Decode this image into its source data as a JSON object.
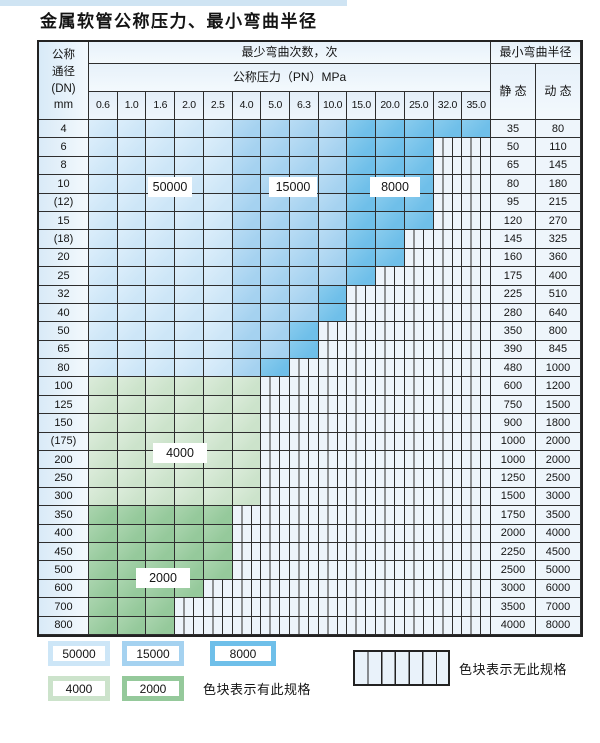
{
  "page": {
    "title": "金属软管公称压力、最小弯曲半径"
  },
  "table": {
    "corner_lines": [
      "公称",
      "通径",
      "(DN)",
      "mm"
    ],
    "cycles_header": "最少弯曲次数，次",
    "pressure_header": "公称压力（PN）MPa",
    "radius_header": "最小弯曲半径",
    "static_label": "静 态",
    "dynamic_label": "动 态",
    "pressure_columns": [
      "0.6",
      "1.0",
      "1.6",
      "2.0",
      "2.5",
      "4.0",
      "5.0",
      "6.3",
      "10.0",
      "15.0",
      "20.0",
      "25.0",
      "32.0",
      "35.0"
    ],
    "cell_legend_codes": {
      "L": "50000",
      "M": "15000",
      "D": "8000",
      "G": "4000",
      "g": "2000",
      "X": "无此规格"
    },
    "rows": [
      {
        "dn": "4",
        "cells": "LLLLLMMMMDDDDD",
        "static": "35",
        "dynamic": "80"
      },
      {
        "dn": "6",
        "cells": "LLLLLMMMMDDDXX",
        "static": "50",
        "dynamic": "110"
      },
      {
        "dn": "8",
        "cells": "LLLLLMMMMDDDXX",
        "static": "65",
        "dynamic": "145"
      },
      {
        "dn": "10",
        "cells": "LLLLLMMMMDDDXX",
        "static": "80",
        "dynamic": "180"
      },
      {
        "dn": "(12)",
        "cells": "LLLLLMMMMDDDXX",
        "static": "95",
        "dynamic": "215"
      },
      {
        "dn": "15",
        "cells": "LLLLLMMMMDDDXX",
        "static": "120",
        "dynamic": "270"
      },
      {
        "dn": "(18)",
        "cells": "LLLLLMMMMDDXXX",
        "static": "145",
        "dynamic": "325"
      },
      {
        "dn": "20",
        "cells": "LLLLLMMMMDDXXX",
        "static": "160",
        "dynamic": "360"
      },
      {
        "dn": "25",
        "cells": "LLLLLMMMMDXXXX",
        "static": "175",
        "dynamic": "400"
      },
      {
        "dn": "32",
        "cells": "LLLLLMMMDXXXXX",
        "static": "225",
        "dynamic": "510"
      },
      {
        "dn": "40",
        "cells": "LLLLLMMMDXXXXX",
        "static": "280",
        "dynamic": "640"
      },
      {
        "dn": "50",
        "cells": "LLLLLMMDXXXXXX",
        "static": "350",
        "dynamic": "800"
      },
      {
        "dn": "65",
        "cells": "LLLLLMMDXXXXXX",
        "static": "390",
        "dynamic": "845"
      },
      {
        "dn": "80",
        "cells": "LLLLLMDXXXXXXX",
        "static": "480",
        "dynamic": "1000"
      },
      {
        "dn": "100",
        "cells": "GGGGGGXXXXXXXX",
        "static": "600",
        "dynamic": "1200"
      },
      {
        "dn": "125",
        "cells": "GGGGGGXXXXXXXX",
        "static": "750",
        "dynamic": "1500"
      },
      {
        "dn": "150",
        "cells": "GGGGGGXXXXXXXX",
        "static": "900",
        "dynamic": "1800"
      },
      {
        "dn": "(175)",
        "cells": "GGGGGGXXXXXXXX",
        "static": "1000",
        "dynamic": "2000"
      },
      {
        "dn": "200",
        "cells": "GGGGGGXXXXXXXX",
        "static": "1000",
        "dynamic": "2000"
      },
      {
        "dn": "250",
        "cells": "GGGGGGXXXXXXXX",
        "static": "1250",
        "dynamic": "2500"
      },
      {
        "dn": "300",
        "cells": "GGGGGGXXXXXXXX",
        "static": "1500",
        "dynamic": "3000"
      },
      {
        "dn": "350",
        "cells": "gggggXXXXXXXXX",
        "static": "1750",
        "dynamic": "3500"
      },
      {
        "dn": "400",
        "cells": "gggggXXXXXXXXX",
        "static": "2000",
        "dynamic": "4000"
      },
      {
        "dn": "450",
        "cells": "gggggXXXXXXXXX",
        "static": "2250",
        "dynamic": "4500"
      },
      {
        "dn": "500",
        "cells": "gggggXXXXXXXXX",
        "static": "2500",
        "dynamic": "5000"
      },
      {
        "dn": "600",
        "cells": "ggggXXXXXXXXXX",
        "static": "3000",
        "dynamic": "6000"
      },
      {
        "dn": "700",
        "cells": "gggXXXXXXXXXXX",
        "static": "3500",
        "dynamic": "7000"
      },
      {
        "dn": "800",
        "cells": "gggXXXXXXXXXXX",
        "static": "4000",
        "dynamic": "8000"
      }
    ],
    "cycle_labels": [
      "50000",
      "15000",
      "8000",
      "4000",
      "2000"
    ]
  },
  "legend": {
    "available_items": [
      {
        "label": "50000"
      },
      {
        "label": "15000"
      },
      {
        "label": "8000"
      },
      {
        "label": "4000"
      },
      {
        "label": "2000"
      }
    ],
    "available_text": "色块表示有此规格",
    "unavailable_text": "色块表示无此规格"
  },
  "colors": {
    "c-50000": "#cde6f7",
    "c-15000": "#a5d2f0",
    "c-8000": "#6fbfe9",
    "c-4000": "#cce3cb",
    "c-2000": "#95c99b",
    "hatch-bg": "#edf4fb"
  }
}
